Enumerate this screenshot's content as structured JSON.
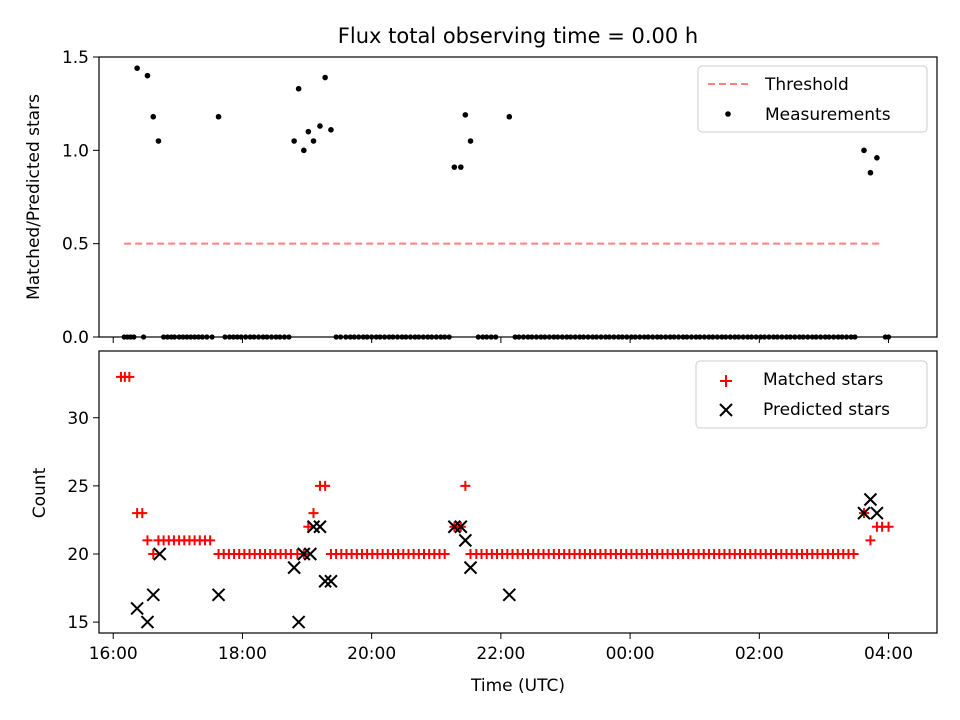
{
  "chart_data": [
    {
      "id": "ratio",
      "type": "scatter",
      "title": "Flux total observing time = 0.00 h",
      "xlabel": "",
      "ylabel": "Matched/Predicted stars",
      "xlim": [
        15.78,
        28.75
      ],
      "ylim": [
        0,
        1.5
      ],
      "yticks": [
        0.0,
        0.5,
        1.0,
        1.5
      ],
      "ytick_labels": [
        "0.0",
        "0.5",
        "1.0",
        "1.5"
      ],
      "xticks": [
        16,
        18,
        20,
        22,
        24,
        26,
        28
      ],
      "legend": {
        "placement": "top-right",
        "entries": [
          "Threshold",
          "Measurements"
        ]
      },
      "threshold": {
        "name": "Threshold",
        "y": 0.5,
        "x_start": 16.17,
        "x_end": 27.9,
        "color": "#ff7f7f"
      },
      "series": [
        {
          "name": "Measurements",
          "color": "#000000",
          "points": [
            [
              16.37,
              1.44
            ],
            [
              16.53,
              1.4
            ],
            [
              16.62,
              1.18
            ],
            [
              16.7,
              1.05
            ],
            [
              17.63,
              1.18
            ],
            [
              18.8,
              1.05
            ],
            [
              18.87,
              1.33
            ],
            [
              18.95,
              1.0
            ],
            [
              19.02,
              1.1
            ],
            [
              19.1,
              1.05
            ],
            [
              19.2,
              1.13
            ],
            [
              19.28,
              1.39
            ],
            [
              19.37,
              1.11
            ],
            [
              21.28,
              0.91
            ],
            [
              21.38,
              0.91
            ],
            [
              21.45,
              1.19
            ],
            [
              21.53,
              1.05
            ],
            [
              22.13,
              1.18
            ],
            [
              27.62,
              1.0
            ],
            [
              27.72,
              0.88
            ],
            [
              27.82,
              0.96
            ]
          ],
          "zeros": [
            16.17,
            16.22,
            16.27,
            16.32,
            16.47,
            16.78,
            16.84,
            16.9,
            16.95,
            17.02,
            17.08,
            17.14,
            17.2,
            17.26,
            17.32,
            17.38,
            17.45,
            17.53,
            17.73,
            17.8,
            17.86,
            17.92,
            17.98,
            18.05,
            18.12,
            18.18,
            18.25,
            18.32,
            18.38,
            18.45,
            18.52,
            18.58,
            18.65,
            18.72,
            19.45,
            19.52,
            19.6,
            19.67,
            19.73,
            19.8,
            19.87,
            19.93,
            20.0,
            20.07,
            20.13,
            20.2,
            20.27,
            20.33,
            20.4,
            20.47,
            20.53,
            20.6,
            20.67,
            20.73,
            20.8,
            20.87,
            20.93,
            21.0,
            21.07,
            21.13,
            21.2,
            21.65,
            21.72,
            21.78,
            21.85,
            21.92,
            22.22,
            22.28,
            22.35,
            22.42,
            22.48,
            22.55,
            22.62,
            22.68,
            22.75,
            22.82,
            22.88,
            22.95,
            23.02,
            23.08,
            23.15,
            23.22,
            23.28,
            23.35,
            23.42,
            23.48,
            23.55,
            23.62,
            23.68,
            23.75,
            23.82,
            23.88,
            23.95,
            24.02,
            24.08,
            24.15,
            24.22,
            24.28,
            24.35,
            24.42,
            24.48,
            24.55,
            24.62,
            24.68,
            24.75,
            24.82,
            24.88,
            24.95,
            25.02,
            25.08,
            25.15,
            25.22,
            25.28,
            25.35,
            25.42,
            25.48,
            25.55,
            25.62,
            25.68,
            25.75,
            25.82,
            25.88,
            25.95,
            26.02,
            26.08,
            26.15,
            26.22,
            26.28,
            26.35,
            26.42,
            26.48,
            26.55,
            26.62,
            26.68,
            26.75,
            26.82,
            26.88,
            26.95,
            27.02,
            27.08,
            27.15,
            27.22,
            27.28,
            27.35,
            27.42,
            27.48,
            27.95,
            28.0
          ]
        }
      ]
    },
    {
      "id": "count",
      "type": "scatter",
      "title": "",
      "xlabel": "Time (UTC)",
      "ylabel": "Count",
      "xlim": [
        15.78,
        28.75
      ],
      "ylim": [
        14.2,
        34.9
      ],
      "yticks": [
        15,
        20,
        25,
        30
      ],
      "ytick_labels": [
        "15",
        "20",
        "25",
        "30"
      ],
      "xticks": [
        16,
        18,
        20,
        22,
        24,
        26,
        28
      ],
      "xtick_labels": [
        "16:00",
        "18:00",
        "20:00",
        "22:00",
        "00:00",
        "02:00",
        "04:00"
      ],
      "legend": {
        "placement": "top-right",
        "entries": [
          "Matched stars",
          "Predicted stars"
        ]
      },
      "series": [
        {
          "name": "Matched stars",
          "marker": "plus",
          "color": "#ff0000",
          "points": [
            [
              16.12,
              33
            ],
            [
              16.18,
              33
            ],
            [
              16.25,
              33
            ],
            [
              16.37,
              23
            ],
            [
              16.45,
              23
            ],
            [
              16.53,
              21
            ],
            [
              16.62,
              20
            ],
            [
              16.7,
              21
            ],
            [
              16.78,
              21
            ],
            [
              16.86,
              21
            ],
            [
              16.94,
              21
            ],
            [
              17.02,
              21
            ],
            [
              17.1,
              21
            ],
            [
              17.18,
              21
            ],
            [
              17.26,
              21
            ],
            [
              17.34,
              21
            ],
            [
              17.42,
              21
            ],
            [
              17.5,
              21
            ],
            [
              18.85,
              20
            ],
            [
              18.95,
              20
            ],
            [
              19.02,
              22
            ],
            [
              19.1,
              23
            ],
            [
              19.2,
              25
            ],
            [
              19.28,
              25
            ],
            [
              19.37,
              20
            ],
            [
              21.28,
              22
            ],
            [
              21.38,
              22
            ],
            [
              21.45,
              25
            ],
            [
              21.53,
              20
            ],
            [
              27.62,
              23
            ],
            [
              27.72,
              21
            ],
            [
              27.82,
              22
            ],
            [
              27.9,
              22
            ],
            [
              28.0,
              22
            ]
          ],
          "flat_runs": [
            {
              "from": 17.63,
              "to": 18.75,
              "y": 20
            },
            {
              "from": 19.45,
              "to": 21.2,
              "y": 20
            },
            {
              "from": 21.62,
              "to": 27.5,
              "y": 20
            }
          ]
        },
        {
          "name": "Predicted stars",
          "marker": "x",
          "color": "#000000",
          "points": [
            [
              16.37,
              16
            ],
            [
              16.53,
              15
            ],
            [
              16.62,
              17
            ],
            [
              16.72,
              20
            ],
            [
              17.63,
              17
            ],
            [
              18.8,
              19
            ],
            [
              18.87,
              15
            ],
            [
              18.95,
              20
            ],
            [
              19.05,
              20
            ],
            [
              19.1,
              22
            ],
            [
              19.2,
              22
            ],
            [
              19.28,
              18
            ],
            [
              19.37,
              18
            ],
            [
              21.28,
              22
            ],
            [
              21.38,
              22
            ],
            [
              21.45,
              21
            ],
            [
              21.53,
              19
            ],
            [
              22.13,
              17
            ],
            [
              27.62,
              23
            ],
            [
              27.72,
              24
            ],
            [
              27.82,
              23
            ]
          ]
        }
      ]
    }
  ]
}
